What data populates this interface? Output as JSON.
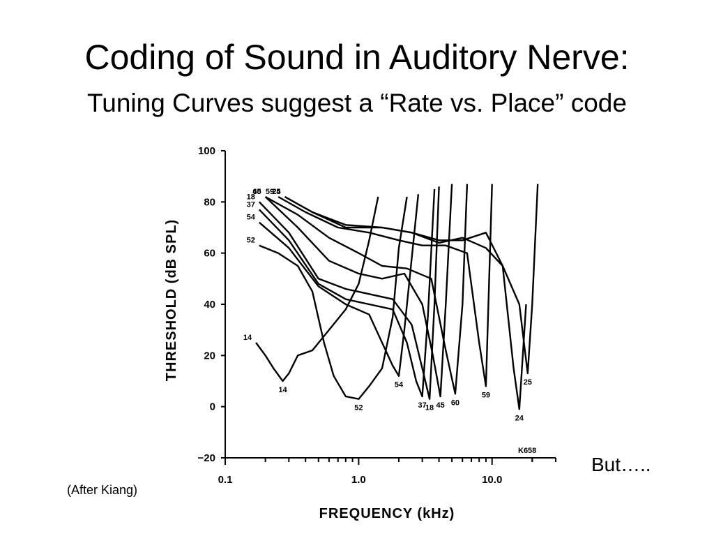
{
  "slide": {
    "title": "Coding of Sound in Auditory Nerve:",
    "subtitle": "Tuning Curves suggest a “Rate vs. Place” code",
    "credit": "(After Kiang)",
    "note": "But….."
  },
  "chart_data": {
    "type": "line",
    "xlabel": "FREQUENCY (kHz)",
    "ylabel": "THRESHOLD (dB SPL)",
    "x_scale": "log",
    "xlim": [
      0.1,
      30
    ],
    "ylim": [
      -20,
      100
    ],
    "x_ticks": [
      {
        "value": 0.1,
        "label": "0.1"
      },
      {
        "value": 1.0,
        "label": "1.0"
      },
      {
        "value": 10.0,
        "label": "10.0"
      }
    ],
    "y_ticks": [
      {
        "value": 100,
        "label": "100"
      },
      {
        "value": 80,
        "label": "80"
      },
      {
        "value": 60,
        "label": "60"
      },
      {
        "value": 40,
        "label": "40"
      },
      {
        "value": 20,
        "label": "20"
      },
      {
        "value": 0,
        "label": "0"
      },
      {
        "value": -20,
        "label": "−20"
      }
    ],
    "annotation": "K658",
    "line_color": "#000000",
    "series": [
      {
        "name": "14",
        "x": [
          0.17,
          0.2,
          0.23,
          0.27,
          0.3,
          0.35,
          0.45,
          0.6,
          0.8,
          1.0,
          1.2,
          1.4
        ],
        "y": [
          25,
          20,
          15,
          10,
          13,
          20,
          22,
          30,
          38,
          48,
          65,
          82
        ]
      },
      {
        "name": "52",
        "x": [
          0.18,
          0.25,
          0.35,
          0.45,
          0.55,
          0.65,
          0.8,
          1.0,
          1.2,
          1.5,
          1.8,
          2.0,
          2.3
        ],
        "y": [
          63,
          60,
          55,
          45,
          25,
          12,
          4,
          3,
          8,
          15,
          35,
          62,
          82
        ]
      },
      {
        "name": "54",
        "x": [
          0.18,
          0.3,
          0.5,
          0.8,
          1.2,
          1.5,
          1.8,
          2.0,
          2.2,
          2.5,
          2.8
        ],
        "y": [
          72,
          62,
          47,
          40,
          36,
          25,
          16,
          12,
          30,
          58,
          83
        ]
      },
      {
        "name": "37",
        "x": [
          0.18,
          0.3,
          0.5,
          0.8,
          1.2,
          1.8,
          2.3,
          2.7,
          3.0,
          3.3,
          3.7
        ],
        "y": [
          77,
          65,
          48,
          42,
          40,
          38,
          25,
          10,
          4,
          35,
          85
        ]
      },
      {
        "name": "18",
        "x": [
          0.18,
          0.3,
          0.5,
          0.8,
          1.2,
          1.8,
          2.5,
          3.0,
          3.4,
          3.7,
          4.0
        ],
        "y": [
          80,
          68,
          50,
          46,
          44,
          42,
          32,
          15,
          3,
          40,
          86
        ]
      },
      {
        "name": "45",
        "x": [
          0.2,
          0.35,
          0.6,
          1.0,
          1.5,
          2.2,
          3.0,
          3.6,
          4.1,
          4.5,
          5.0
        ],
        "y": [
          82,
          70,
          57,
          52,
          50,
          52,
          40,
          20,
          4,
          40,
          87
        ]
      },
      {
        "name": "60",
        "x": [
          0.2,
          0.35,
          0.6,
          1.0,
          1.5,
          2.3,
          3.5,
          4.5,
          5.3,
          6.0,
          6.5
        ],
        "y": [
          82,
          75,
          66,
          60,
          55,
          54,
          50,
          22,
          5,
          40,
          87
        ]
      },
      {
        "name": "59",
        "x": [
          0.25,
          0.4,
          0.7,
          1.2,
          2.0,
          3.0,
          4.5,
          6.5,
          8.0,
          9.0,
          10.0
        ],
        "y": [
          82,
          76,
          70,
          68,
          65,
          63,
          63,
          60,
          25,
          8,
          87
        ]
      },
      {
        "name": "24",
        "x": [
          0.28,
          0.45,
          0.8,
          1.5,
          2.5,
          4.0,
          6.0,
          9.0,
          12.0,
          14.5,
          16.0,
          18.0
        ],
        "y": [
          82,
          76,
          71,
          70,
          68,
          65,
          65,
          68,
          55,
          15,
          -1,
          40
        ]
      },
      {
        "name": "25",
        "x": [
          0.28,
          0.45,
          0.8,
          1.5,
          2.5,
          4.0,
          6.0,
          9.0,
          12.0,
          16.0,
          18.5,
          20.0,
          22.0
        ],
        "y": [
          82,
          76,
          70,
          70,
          68,
          64,
          66,
          62,
          55,
          40,
          13,
          40,
          87
        ]
      }
    ]
  }
}
